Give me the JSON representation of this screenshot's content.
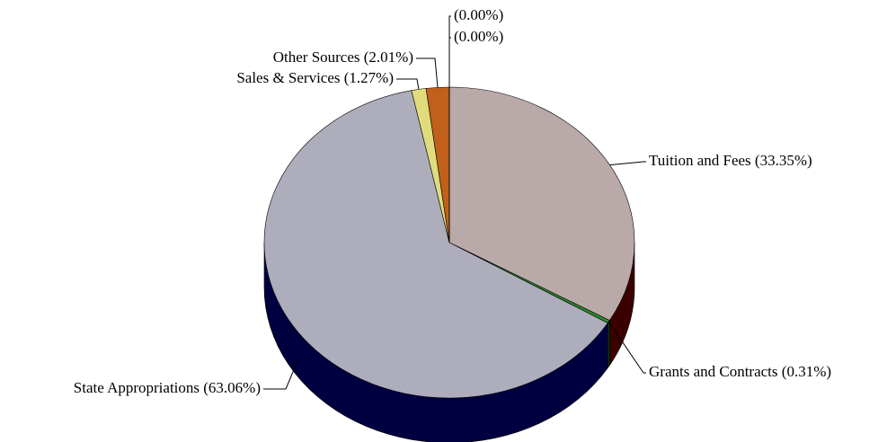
{
  "chart_data": {
    "type": "pie",
    "categories": [
      "Tuition and Fees",
      "Grants and Contracts",
      "State Appropriations",
      "Sales & Services",
      "Other Sources",
      null,
      null
    ],
    "values": [
      33.35,
      0.31,
      63.06,
      1.27,
      2.01,
      0,
      0
    ],
    "value_labels": [
      "(33.35%)",
      "(0.31%)",
      "(63.06%)",
      "(1.27%)",
      "(2.01%)",
      "(0.00%)",
      "(0.00%)"
    ],
    "colors": [
      "#b9a9a8",
      "#2a8a2a",
      "#adadbb",
      "#e0dc7c",
      "#c0601a",
      "#6a4a8a",
      "#4a8a8a"
    ],
    "side_colors": [
      "#3a0000",
      "#0a3a0a",
      "#000040",
      "#6a6a20",
      "#5a2a00",
      "#2a1a3a",
      "#1a3a3a"
    ]
  }
}
